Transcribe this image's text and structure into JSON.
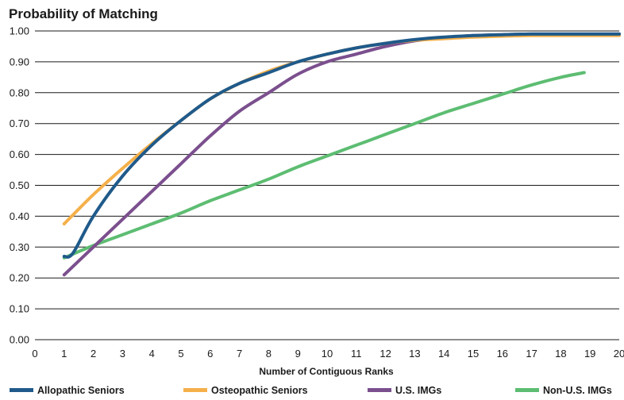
{
  "chart_data": {
    "type": "line",
    "title": "Probability of Matching",
    "xlabel": "Number of Contiguous Ranks",
    "ylabel": "",
    "xlim": [
      0,
      20
    ],
    "ylim": [
      0,
      1.0
    ],
    "x_ticks": [
      "0",
      "1",
      "2",
      "3",
      "4",
      "5",
      "6",
      "7",
      "8",
      "9",
      "10",
      "11",
      "12",
      "13",
      "14",
      "15",
      "16",
      "17",
      "18",
      "19",
      "20"
    ],
    "y_ticks": [
      "0.00",
      "0.10",
      "0.20",
      "0.30",
      "0.40",
      "0.50",
      "0.60",
      "0.70",
      "0.80",
      "0.90",
      "1.00"
    ],
    "grid": "horizontal",
    "legend_position": "bottom",
    "series": [
      {
        "name": "Allopathic Seniors",
        "color": "#1f5a8a",
        "x": [
          1,
          1.3,
          2,
          3,
          4,
          5,
          6,
          7,
          8,
          9,
          10,
          11,
          12,
          13,
          14,
          15,
          16,
          17,
          18,
          19,
          20
        ],
        "y": [
          0.27,
          0.28,
          0.4,
          0.53,
          0.63,
          0.71,
          0.78,
          0.83,
          0.865,
          0.9,
          0.925,
          0.945,
          0.96,
          0.972,
          0.98,
          0.985,
          0.988,
          0.99,
          0.99,
          0.99,
          0.99
        ]
      },
      {
        "name": "Osteopathic Seniors",
        "color": "#f5b04a",
        "x": [
          1,
          2,
          3,
          4,
          5,
          6,
          7,
          8,
          9,
          10,
          11,
          12,
          13,
          14,
          15,
          16,
          17,
          18,
          19,
          20
        ],
        "y": [
          0.375,
          0.47,
          0.555,
          0.635,
          0.71,
          0.78,
          0.83,
          0.87,
          0.9,
          0.925,
          0.945,
          0.96,
          0.97,
          0.975,
          0.98,
          0.983,
          0.985,
          0.985,
          0.985,
          0.985
        ]
      },
      {
        "name": "U.S. IMGs",
        "color": "#7b4f8e",
        "x": [
          1,
          2,
          3,
          4,
          5,
          6,
          7,
          8,
          9,
          10,
          11,
          12,
          13,
          14,
          15,
          16,
          17,
          18,
          19,
          20
        ],
        "y": [
          0.21,
          0.3,
          0.39,
          0.48,
          0.57,
          0.66,
          0.74,
          0.8,
          0.86,
          0.9,
          0.925,
          0.95,
          0.968,
          0.978,
          0.985,
          0.988,
          0.99,
          0.99,
          0.99,
          0.99
        ]
      },
      {
        "name": "Non-U.S. IMGs",
        "color": "#5dbd72",
        "x": [
          1,
          2,
          3,
          4,
          5,
          6,
          7,
          8,
          9,
          10,
          11,
          12,
          13,
          14,
          15,
          16,
          17,
          18,
          18.8
        ],
        "y": [
          0.265,
          0.305,
          0.34,
          0.375,
          0.41,
          0.45,
          0.485,
          0.52,
          0.56,
          0.595,
          0.63,
          0.665,
          0.7,
          0.735,
          0.765,
          0.795,
          0.825,
          0.85,
          0.865
        ]
      }
    ]
  }
}
